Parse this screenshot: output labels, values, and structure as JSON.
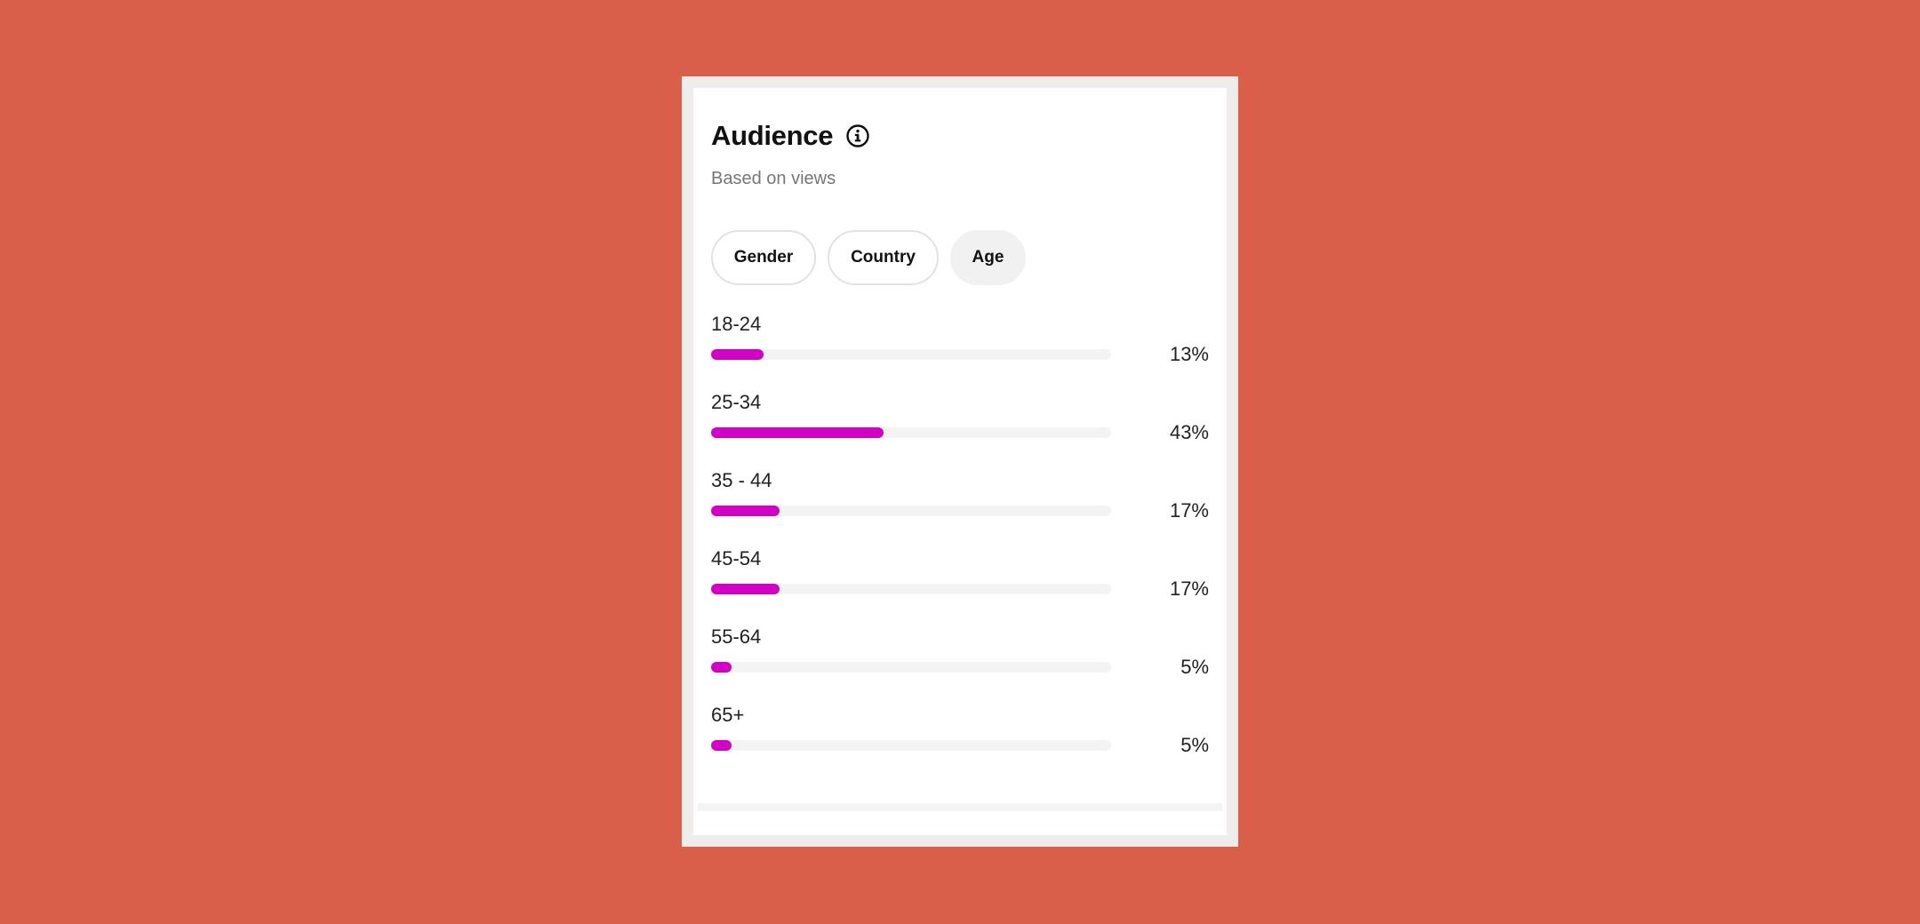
{
  "audience": {
    "title": "Audience",
    "subtitle": "Based on views",
    "info_icon": "info-icon"
  },
  "tabs": [
    {
      "label": "Gender",
      "selected": false
    },
    {
      "label": "Country",
      "selected": false
    },
    {
      "label": "Age",
      "selected": true
    }
  ],
  "age_rows": [
    {
      "label": "18-24",
      "value": "13%",
      "percent": 13
    },
    {
      "label": "25-34",
      "value": "43%",
      "percent": 43
    },
    {
      "label": "35 - 44",
      "value": "17%",
      "percent": 17
    },
    {
      "label": "45-54",
      "value": "17%",
      "percent": 17
    },
    {
      "label": "55-64",
      "value": "5%",
      "percent": 5
    },
    {
      "label": "65+",
      "value": "5%",
      "percent": 5
    }
  ],
  "colors": {
    "background": "#d95f4b",
    "bar_fill": "#d300c5",
    "bar_track": "#f3f3f3"
  }
}
